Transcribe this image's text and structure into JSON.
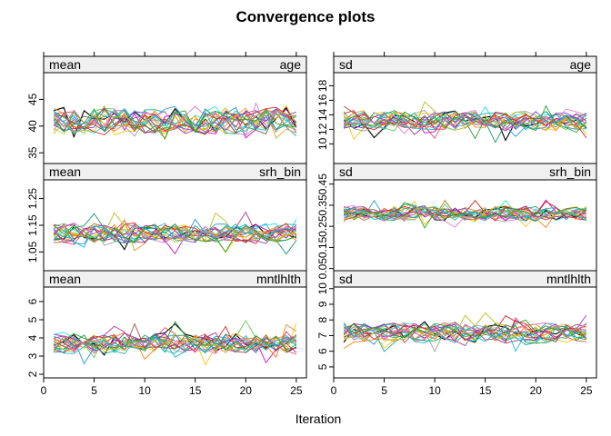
{
  "title": "Convergence plots",
  "xlabel": "Iteration",
  "chart_data": {
    "type": "line",
    "title": "Convergence plots",
    "xlabel": "Iteration",
    "ylabel": "",
    "grid": false,
    "legend": "none",
    "n_iterations": 25,
    "chain_colors": [
      "#000000",
      "#df536b",
      "#61d04f",
      "#2297e6",
      "#28e2e5",
      "#cd0bbc",
      "#f5c710",
      "#9e9e9e",
      "#e0a030",
      "#1a9d6f",
      "#b03a8a",
      "#ff7f0e",
      "#7f3fbf",
      "#20b2aa",
      "#d62728",
      "#8c564b",
      "#bcbd22",
      "#17becf",
      "#e377c2",
      "#2ca02c"
    ],
    "xlim": [
      0,
      26
    ],
    "xticks": [
      0,
      5,
      10,
      15,
      20,
      25
    ],
    "panels": [
      {
        "id": "mean-age",
        "stat": "mean",
        "variable": "age",
        "ylim": [
          33.0,
          50.0
        ],
        "yticks": [
          35,
          40,
          45
        ],
        "ytick_labels": [
          "35",
          "40",
          "45"
        ],
        "center": 41.0,
        "spread": 2.4,
        "excursion": 7.0
      },
      {
        "id": "sd-age",
        "stat": "sd",
        "variable": "age",
        "ylim": [
          7.3,
          19.8
        ],
        "yticks": [
          10,
          12,
          14,
          16,
          18
        ],
        "ytick_labels": [
          "10",
          "12",
          "14",
          "16",
          "18"
        ],
        "center": 13.2,
        "spread": 1.3,
        "excursion": 6.0
      },
      {
        "id": "mean-srh_bin",
        "stat": "mean",
        "variable": "srh_bin",
        "ylim": [
          0.98,
          1.32
        ],
        "yticks": [
          1.05,
          1.15,
          1.25
        ],
        "ytick_labels": [
          "1.05",
          "1.15",
          "1.25"
        ],
        "center": 1.12,
        "spread": 0.035,
        "excursion": 0.16
      },
      {
        "id": "sd-srh_bin",
        "stat": "sd",
        "variable": "srh_bin",
        "ylim": [
          0.04,
          0.47
        ],
        "yticks": [
          0.05,
          0.15,
          0.25,
          0.35,
          0.45
        ],
        "ytick_labels": [
          "0.05",
          "0.15",
          "0.25",
          "0.35",
          "0.45"
        ],
        "center": 0.31,
        "spread": 0.035,
        "excursion": 0.14
      },
      {
        "id": "mean-mntlhlth",
        "stat": "mean",
        "variable": "mntlhlth",
        "ylim": [
          1.8,
          6.8
        ],
        "yticks": [
          2,
          3,
          4,
          5,
          6
        ],
        "ytick_labels": [
          "2",
          "3",
          "4",
          "5",
          "6"
        ],
        "center": 3.7,
        "spread": 0.55,
        "excursion": 2.6
      },
      {
        "id": "sd-mntlhlth",
        "stat": "sd",
        "variable": "mntlhlth",
        "ylim": [
          4.3,
          10.1
        ],
        "yticks": [
          5,
          6,
          7,
          8,
          9,
          10
        ],
        "ytick_labels": [
          "5",
          "6",
          "7",
          "8",
          "9",
          "10"
        ],
        "center": 7.2,
        "spread": 0.6,
        "excursion": 2.5
      }
    ]
  }
}
